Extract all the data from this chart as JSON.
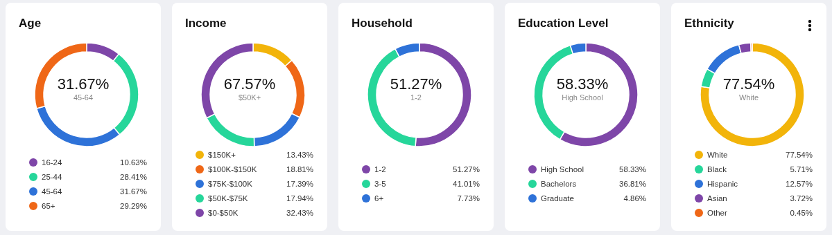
{
  "chart_data": [
    {
      "type": "donut",
      "title": "Age",
      "categories": [
        "16-24",
        "25-44",
        "45-64",
        "65+"
      ],
      "values": [
        10.63,
        28.41,
        31.67,
        29.29
      ],
      "value_labels": [
        "10.63%",
        "28.41%",
        "31.67%",
        "29.29%"
      ],
      "colors": [
        "#7e46a8",
        "#26d69a",
        "#2e72d8",
        "#ef6717"
      ],
      "legend": "bottom",
      "annotations": [
        "31.67%",
        "45-64"
      ]
    },
    {
      "type": "donut",
      "title": "Income",
      "categories": [
        "$150K+",
        "$100K-$150K",
        "$75K-$100K",
        "$50K-$75K",
        "$0-$50K"
      ],
      "values": [
        13.43,
        18.81,
        17.39,
        17.94,
        32.43
      ],
      "value_labels": [
        "13.43%",
        "18.81%",
        "17.39%",
        "17.94%",
        "32.43%"
      ],
      "colors": [
        "#f2b40a",
        "#ef6717",
        "#2e72d8",
        "#26d69a",
        "#7e46a8"
      ],
      "legend": "bottom",
      "annotations": [
        "67.57%",
        "$50K+"
      ]
    },
    {
      "type": "donut",
      "title": "Household",
      "categories": [
        "1-2",
        "3-5",
        "6+"
      ],
      "values": [
        51.27,
        41.01,
        7.73
      ],
      "value_labels": [
        "51.27%",
        "41.01%",
        "7.73%"
      ],
      "colors": [
        "#7e46a8",
        "#26d69a",
        "#2e72d8"
      ],
      "legend": "bottom",
      "annotations": [
        "51.27%",
        "1-2"
      ]
    },
    {
      "type": "donut",
      "title": "Education Level",
      "categories": [
        "High School",
        "Bachelors",
        "Graduate"
      ],
      "values": [
        58.33,
        36.81,
        4.86
      ],
      "value_labels": [
        "58.33%",
        "36.81%",
        "4.86%"
      ],
      "colors": [
        "#7e46a8",
        "#26d69a",
        "#2e72d8"
      ],
      "legend": "bottom",
      "annotations": [
        "58.33%",
        "High School"
      ]
    },
    {
      "type": "donut",
      "title": "Ethnicity",
      "categories": [
        "White",
        "Black",
        "Hispanic",
        "Asian",
        "Other"
      ],
      "values": [
        77.54,
        5.71,
        12.57,
        3.72,
        0.45
      ],
      "value_labels": [
        "77.54%",
        "5.71%",
        "12.57%",
        "3.72%",
        "0.45%"
      ],
      "colors": [
        "#f2b40a",
        "#26d69a",
        "#2e72d8",
        "#7e46a8",
        "#ef6717"
      ],
      "legend": "bottom",
      "annotations": [
        "77.54%",
        "White"
      ]
    }
  ]
}
